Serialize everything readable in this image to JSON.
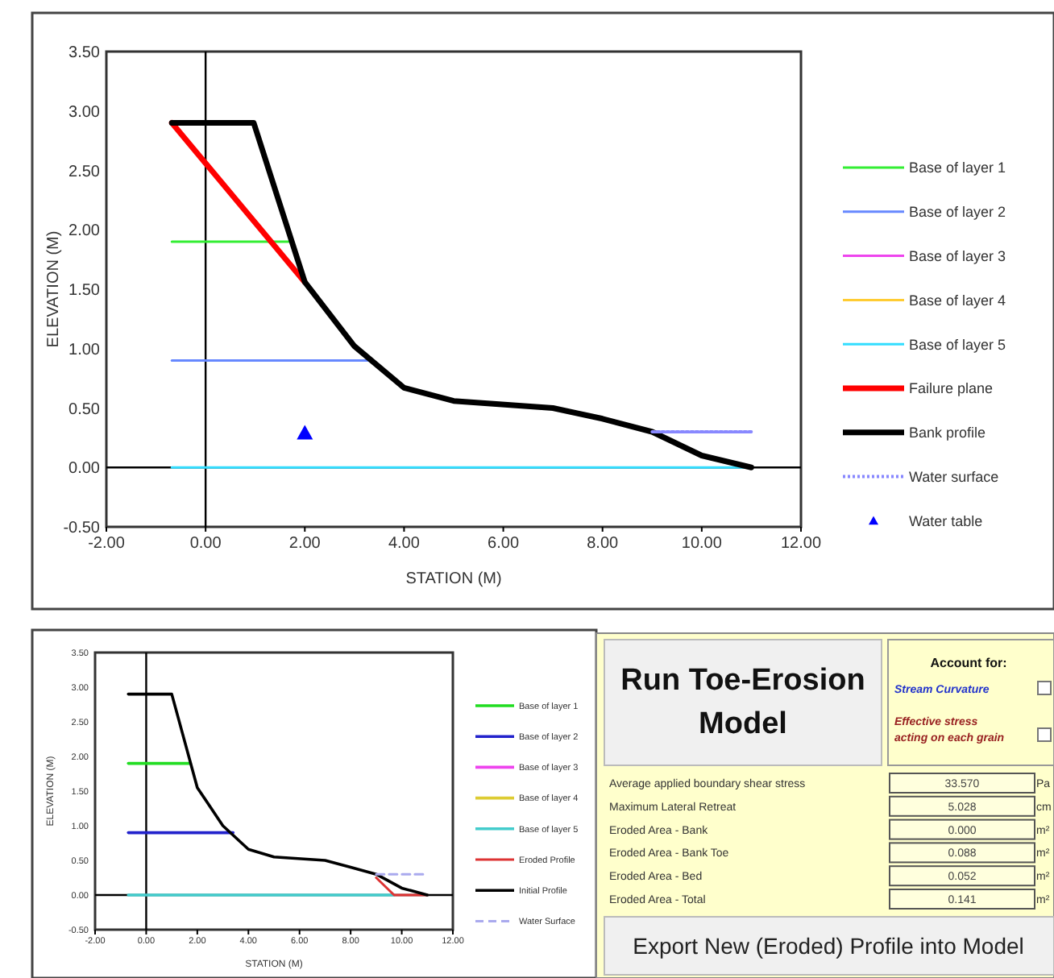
{
  "chart_data": [
    {
      "type": "line",
      "xlabel": "STATION  (M)",
      "ylabel": "ELEVATION  (M)",
      "xlim": [
        -2,
        12
      ],
      "ylim": [
        -0.5,
        3.5
      ],
      "xticks": [
        {
          "value": -2,
          "label": "-2.00"
        },
        {
          "value": 0,
          "label": "0.00"
        },
        {
          "value": 2,
          "label": "2.00"
        },
        {
          "value": 4,
          "label": "4.00"
        },
        {
          "value": 6,
          "label": "6.00"
        },
        {
          "value": 8,
          "label": "8.00"
        },
        {
          "value": 10,
          "label": "10.00"
        },
        {
          "value": 12,
          "label": "12.00"
        }
      ],
      "yticks": [
        {
          "value": -0.5,
          "label": "-0.50"
        },
        {
          "value": 0,
          "label": "0.00"
        },
        {
          "value": 0.5,
          "label": "0.50"
        },
        {
          "value": 1,
          "label": "1.00"
        },
        {
          "value": 1.5,
          "label": "1.50"
        },
        {
          "value": 2,
          "label": "2.00"
        },
        {
          "value": 2.5,
          "label": "2.50"
        },
        {
          "value": 3,
          "label": "3.00"
        },
        {
          "value": 3.5,
          "label": "3.50"
        }
      ],
      "legend": "right",
      "series": [
        {
          "name": "Base of layer 1",
          "color": "#33ee33",
          "x": [
            -0.68,
            1.67
          ],
          "values": [
            1.9,
            1.9
          ]
        },
        {
          "name": "Base of layer 2",
          "color": "#6688ff",
          "x": [
            -0.68,
            3.28
          ],
          "values": [
            0.9,
            0.9
          ]
        },
        {
          "name": "Base of layer 3",
          "color": "#ee44ee"
        },
        {
          "name": "Base of layer 4",
          "color": "#ffcc33"
        },
        {
          "name": "Base of layer 5",
          "color": "#33ddff",
          "x": [
            -0.68,
            10.9
          ],
          "values": [
            0,
            0
          ]
        },
        {
          "name": "Failure plane",
          "color": "#ff0000",
          "x": [
            -0.68,
            2.0
          ],
          "values": [
            2.9,
            1.56
          ]
        },
        {
          "name": "Bank profile",
          "color": "#000000",
          "x": [
            -0.68,
            0.97,
            2.0,
            3.0,
            4.0,
            5.0,
            7.0,
            8.0,
            9.0,
            10.0,
            11.0
          ],
          "values": [
            2.9,
            2.9,
            1.56,
            1.02,
            0.67,
            0.56,
            0.5,
            0.41,
            0.3,
            0.1,
            0
          ]
        },
        {
          "name": "Water surface",
          "color": "#8888ff",
          "x": [
            9.0,
            11.0
          ],
          "values": [
            0.3,
            0.3
          ],
          "line_style": "dotted"
        },
        {
          "name": "Water table",
          "color": "#0000ff",
          "type": "scatter",
          "marker": "triangle",
          "x": [
            2.0
          ],
          "values": [
            0.29
          ]
        }
      ]
    },
    {
      "type": "line",
      "xlabel": "STATION (M)",
      "ylabel": "ELEVATION (M)",
      "xlim": [
        -2,
        12
      ],
      "ylim": [
        -0.5,
        3.5
      ],
      "xticks": [
        {
          "value": -2,
          "label": "-2.00"
        },
        {
          "value": 0,
          "label": "0.00"
        },
        {
          "value": 2,
          "label": "2.00"
        },
        {
          "value": 4,
          "label": "4.00"
        },
        {
          "value": 6,
          "label": "6.00"
        },
        {
          "value": 8,
          "label": "8.00"
        },
        {
          "value": 10,
          "label": "10.00"
        },
        {
          "value": 12,
          "label": "12.00"
        }
      ],
      "yticks": [
        {
          "value": -0.5,
          "label": "-0.50"
        },
        {
          "value": 0,
          "label": "0.00"
        },
        {
          "value": 0.5,
          "label": "0.50"
        },
        {
          "value": 1,
          "label": "1.00"
        },
        {
          "value": 1.5,
          "label": "1.50"
        },
        {
          "value": 2,
          "label": "2.00"
        },
        {
          "value": 2.5,
          "label": "2.50"
        },
        {
          "value": 3,
          "label": "3.00"
        },
        {
          "value": 3.5,
          "label": "3.50"
        }
      ],
      "legend": "right",
      "series": [
        {
          "name": "Base of layer 1",
          "color": "#22dd22",
          "x": [
            -0.7,
            1.7
          ],
          "values": [
            1.9,
            1.9
          ]
        },
        {
          "name": "Base of layer 2",
          "color": "#2222cc",
          "x": [
            -0.7,
            3.4
          ],
          "values": [
            0.9,
            0.9
          ]
        },
        {
          "name": "Base of layer 3",
          "color": "#ee44ee"
        },
        {
          "name": "Base of layer 4",
          "color": "#ddcc33"
        },
        {
          "name": "Base of layer 5",
          "color": "#44cccc",
          "x": [
            -0.7,
            9.7
          ],
          "values": [
            0,
            0
          ]
        },
        {
          "name": "Eroded Profile",
          "color": "#dd3333",
          "x": [
            9.0,
            9.7,
            11.0
          ],
          "values": [
            0.25,
            0,
            0
          ]
        },
        {
          "name": "Initial Profile",
          "color": "#000000",
          "x": [
            -0.7,
            1.0,
            2.0,
            3.0,
            4.0,
            5.0,
            7.0,
            8.0,
            9.0,
            10.0,
            11.0
          ],
          "values": [
            2.9,
            2.9,
            1.55,
            1.0,
            0.66,
            0.55,
            0.5,
            0.4,
            0.3,
            0.1,
            0
          ]
        },
        {
          "name": "Water Surface",
          "color": "#aaaaee",
          "x": [
            9.0,
            11.0
          ],
          "values": [
            0.3,
            0.3
          ],
          "line_style": "dashed"
        }
      ]
    },
    {
      "type": "other",
      "annotations": [
        "Run Toe-Erosion Model",
        "Account for:",
        "Stream Curvature",
        "Effective stress acting on each grain",
        "Export New (Eroded) Profile into Model"
      ],
      "categories": [
        "Average applied boundary shear stress",
        "Maximum Lateral Retreat",
        "Eroded Area - Bank",
        "Eroded Area - Bank Toe",
        "Eroded Area - Bed",
        "Eroded Area - Total"
      ],
      "value_labels": [
        "33.570",
        "5.028",
        "0.000",
        "0.088",
        "0.052",
        "0.141"
      ],
      "y2_categories": [
        "Pa",
        "cm",
        "m²",
        "m²",
        "m²",
        "m²"
      ]
    }
  ]
}
